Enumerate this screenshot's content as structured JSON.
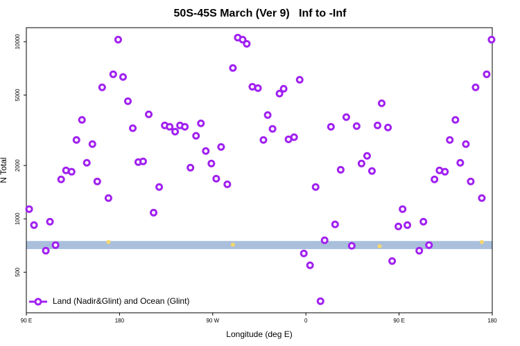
{
  "chart_data": {
    "type": "scatter",
    "title": "50S-45S March (Ver 9)   Inf to -Inf",
    "xlabel": "Longitude (deg E)",
    "ylabel": "N Total",
    "xlim": [
      90,
      540
    ],
    "xticks": [
      {
        "value": 90,
        "label": "90 E"
      },
      180,
      {
        "value": 270,
        "label": "90 W"
      },
      {
        "value": 360,
        "label": "0"
      },
      {
        "value": 450,
        "label": "90 E"
      },
      {
        "value": 540,
        "label": "180"
      }
    ],
    "ylim": [
      295,
      12000
    ],
    "yscale": "log",
    "yticks": [
      500,
      1000,
      2000,
      5000,
      10000
    ],
    "legend": "lower left",
    "band": {
      "ylim": [
        675,
        750
      ],
      "color": "#a9bfdc"
    },
    "series": [
      {
        "name": "Land (Nadir&Glint) and Ocean (Glint)",
        "color": "#a020f0",
        "x": [
          92.7,
          97.4,
          108.8,
          112.8,
          118.2,
          123.6,
          128.3,
          133.7,
          138.4,
          143.7,
          148.4,
          153.8,
          158.5,
          163.2,
          169.3,
          173.9,
          178.7,
          183.4,
          188.1,
          192.8,
          198.1,
          202.8,
          208.2,
          212.9,
          218.3,
          223.7,
          228.4,
          233.7,
          238.4,
          243.1,
          248.5,
          253.9,
          258.6,
          263.3,
          268.7,
          273.4,
          278.1,
          284.1,
          289.5,
          294.2,
          298.9,
          302.9,
          308.3,
          313.7,
          319.0,
          323.1,
          327.8,
          334.5,
          338.5,
          343.2,
          348.6,
          354.0,
          358.0,
          364.0,
          369.4,
          374.1,
          378.1,
          384.2,
          388.2,
          393.6,
          399.0,
          404.3,
          409.0,
          413.7,
          419.1,
          423.8,
          429.2,
          433.2,
          439.3,
          443.3,
          449.3,
          453.4,
          458.0,
          469.5,
          473.5,
          478.9,
          484.2,
          489.0,
          494.3,
          499.0,
          504.4,
          509.1,
          514.5,
          519.2,
          523.9,
          529.9,
          534.6,
          539.3
        ],
        "values": [
          1135,
          922,
          661,
          964,
          711,
          1670,
          1877,
          1845,
          2789,
          3620,
          2072,
          2642,
          1626,
          5523,
          1310,
          6550,
          10270,
          6320,
          4613,
          3250,
          2091,
          2110,
          3890,
          1084,
          1513,
          3368,
          3310,
          3107,
          3368,
          3310,
          1945,
          2943,
          3460,
          2415,
          2053,
          1686,
          2547,
          1567,
          7107,
          10550,
          10270,
          9730,
          5570,
          5470,
          2789,
          3855,
          3222,
          5093,
          5427,
          2812,
          2890,
          6100,
          638,
          547,
          1513,
          343,
          757,
          3310,
          931,
          1893,
          3753,
          704,
          3337,
          2053,
          2267,
          1862,
          3368,
          4490,
          3280,
          578,
          906,
          1135,
          922,
          661,
          964,
          711,
          1670,
          1877,
          1845,
          2789,
          3620,
          2072,
          2642,
          1626,
          5523,
          1310,
          6550,
          10270
        ]
      },
      {
        "color": "#f5d76e",
        "x": [
          169.3,
          289.5,
          431.2,
          529.9
        ],
        "values": [
          740,
          715,
          700,
          740
        ]
      }
    ]
  }
}
